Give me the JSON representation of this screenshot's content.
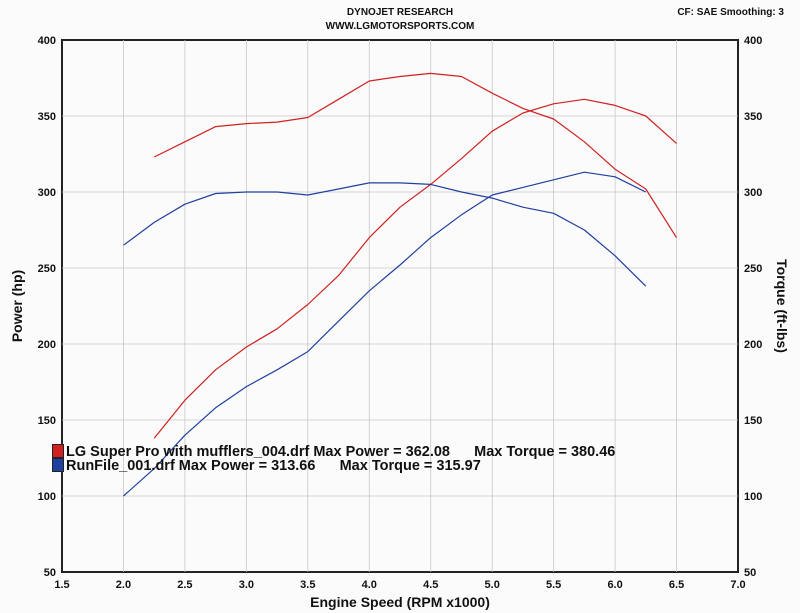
{
  "header": {
    "title": "DYNOJET RESEARCH",
    "subtitle": "WWW.LGMOTORSPORTS.COM",
    "settings": "CF: SAE  Smoothing: 3"
  },
  "legend": [
    {
      "text": "LG Super Pro with mufflers_004.drf Max Power = 362.08      Max Torque = 380.46",
      "color": "#d02020"
    },
    {
      "text": "RunFile_001.drf Max Power = 313.66      Max Torque = 315.97",
      "color": "#2040a0"
    }
  ],
  "chart_data": {
    "type": "line",
    "xlabel": "Engine Speed (RPM x1000)",
    "ylabel_left": "Power (hp)",
    "ylabel_right": "Torque (ft-lbs)",
    "xlim": [
      1.5,
      7.0
    ],
    "ylim": [
      50,
      400
    ],
    "xticks": [
      "1.5",
      "2.0",
      "2.5",
      "3.0",
      "3.5",
      "4.0",
      "4.5",
      "5.0",
      "5.5",
      "6.0",
      "6.5",
      "7.0"
    ],
    "yticks": [
      "50",
      "100",
      "150",
      "200",
      "250",
      "300",
      "350",
      "400"
    ],
    "grid": true,
    "series": [
      {
        "name": "LG Super Pro with mufflers_004.drf",
        "kind": "power",
        "color": "#d02020",
        "x": [
          2.25,
          2.5,
          2.75,
          3.0,
          3.25,
          3.5,
          3.75,
          4.0,
          4.25,
          4.5,
          4.75,
          5.0,
          5.25,
          5.5,
          5.75,
          6.0,
          6.25,
          6.5
        ],
        "y": [
          138,
          163,
          183,
          198,
          210,
          226,
          245,
          270,
          290,
          305,
          322,
          340,
          352,
          358,
          361,
          357,
          350,
          332
        ]
      },
      {
        "name": "LG Super Pro with mufflers_004.drf",
        "kind": "torque",
        "color": "#d02020",
        "x": [
          2.25,
          2.5,
          2.75,
          3.0,
          3.25,
          3.5,
          3.75,
          4.0,
          4.25,
          4.5,
          4.75,
          5.0,
          5.25,
          5.5,
          5.75,
          6.0,
          6.25,
          6.5
        ],
        "y": [
          323,
          333,
          343,
          345,
          346,
          349,
          361,
          373,
          376,
          378,
          376,
          365,
          355,
          348,
          333,
          315,
          302,
          270
        ]
      },
      {
        "name": "RunFile_001.drf",
        "kind": "power",
        "color": "#2040a0",
        "x": [
          2.0,
          2.25,
          2.5,
          2.75,
          3.0,
          3.25,
          3.5,
          3.75,
          4.0,
          4.25,
          4.5,
          4.75,
          5.0,
          5.25,
          5.5,
          5.75,
          6.0,
          6.25
        ],
        "y": [
          100,
          118,
          140,
          158,
          172,
          183,
          195,
          215,
          235,
          252,
          270,
          285,
          298,
          303,
          308,
          313,
          310,
          300
        ]
      },
      {
        "name": "RunFile_001.drf",
        "kind": "torque",
        "color": "#2040a0",
        "x": [
          2.0,
          2.25,
          2.5,
          2.75,
          3.0,
          3.25,
          3.5,
          3.75,
          4.0,
          4.25,
          4.5,
          4.75,
          5.0,
          5.25,
          5.5,
          5.75,
          6.0,
          6.25
        ],
        "y": [
          265,
          280,
          292,
          299,
          300,
          300,
          298,
          302,
          306,
          306,
          305,
          300,
          296,
          290,
          286,
          275,
          258,
          238
        ]
      }
    ]
  }
}
